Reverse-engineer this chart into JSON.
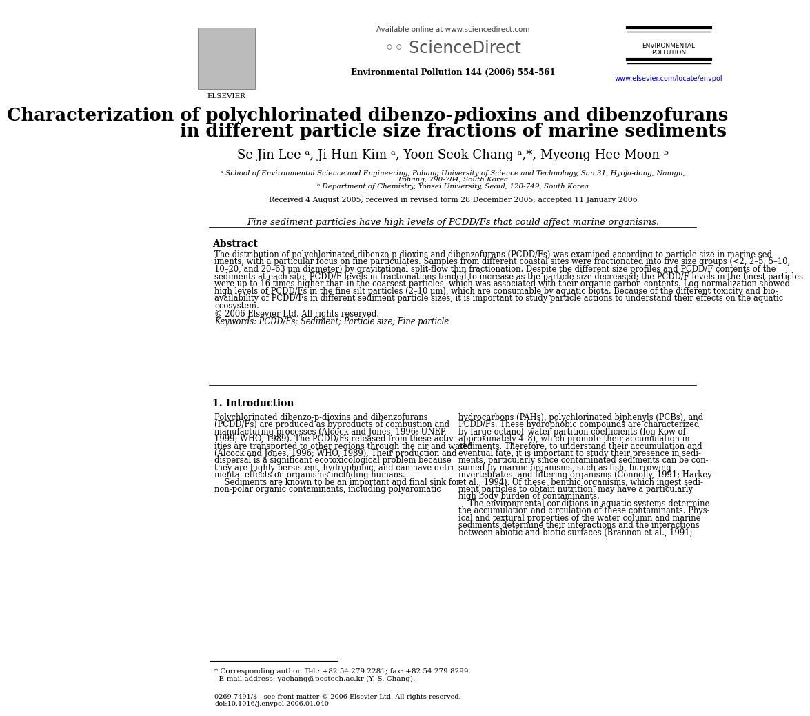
{
  "bg_color": "#ffffff",
  "header_available": "Available online at www.sciencedirect.com",
  "header_journal": "Environmental Pollution 144 (2006) 554–561",
  "header_website": "www.elsevier.com/locate/envpol",
  "header_website_color": "#0000cc",
  "header_env_poll": "ENVIRONMENTAL\nPOLLUTION",
  "title_line1_pre": "Characterization of polychlorinated dibenzo-",
  "title_italic_p": "p",
  "title_line1_post": "-dioxins and dibenzofurans",
  "title_line2": "in different particle size fractions of marine sediments",
  "authors": "Se-Jin Lee ᵃ, Ji-Hun Kim ᵃ, Yoon-Seok Chang ᵃ,*, Myeong Hee Moon ᵇ",
  "affil_a": "ᵃ School of Environmental Science and Engineering, Pohang University of Science and Technology, San 31, Hyoja-dong, Namgu,",
  "affil_a2": "Pohang, 790-784, South Korea",
  "affil_b": "ᵇ Department of Chemistry, Yonsei University, Seoul, 120-749, South Korea",
  "received": "Received 4 August 2005; received in revised form 28 December 2005; accepted 11 January 2006",
  "highlight": "Fine sediment particles have high levels of PCDD/Fs that could affect marine organisms.",
  "abstract_title": "Abstract",
  "abstract_lines": [
    "The distribution of polychlorinated dibenzo-p-dioxins and dibenzofurans (PCDD/Fs) was examined according to particle size in marine sed-",
    "iments, with a particular focus on fine particulates. Samples from different coastal sites were fractionated into five size groups (<2, 2–5, 5–10,",
    "10–20, and 20–63 μm diameter) by gravitational split-flow thin fractionation. Despite the different size profiles and PCDD/F contents of the",
    "sediments at each site, PCDD/F levels in fractionations tended to increase as the particle size decreased; the PCDD/F levels in the finest particles",
    "were up to 16 times higher than in the coarsest particles, which was associated with their organic carbon contents. Log normalization showed",
    "high levels of PCDD/Fs in the fine silt particles (2–10 μm), which are consumable by aquatic biota. Because of the different toxicity and bio-",
    "availability of PCDD/Fs in different sediment particle sizes, it is important to study particle actions to understand their effects on the aquatic",
    "ecosystem."
  ],
  "copyright": "© 2006 Elsevier Ltd. All rights reserved.",
  "keywords": "Keywords: PCDD/Fs; Sediment; Particle size; Fine particle",
  "intro_title": "1. Introduction",
  "intro_col1_lines": [
    "Polychlorinated dibenzo-p-dioxins and dibenzofurans",
    "(PCDD/Fs) are produced as byproducts of combustion and",
    "manufacturing processes (Alcock and Jones, 1996; UNEP,",
    "1999; WHO, 1989). The PCDD/Fs released from these activ-",
    "ities are transported to other regions through the air and water",
    "(Alcock and Jones, 1996; WHO, 1989). Their production and",
    "dispersal is a significant ecotoxicological problem because",
    "they are highly persistent, hydrophobic, and can have detri-",
    "mental effects on organisms including humans.",
    "    Sediments are known to be an important and final sink for",
    "non-polar organic contaminants, including polyaromatic"
  ],
  "intro_col2_lines": [
    "hydrocarbons (PAHs), polychlorinated biphenyls (PCBs), and",
    "PCDD/Fs. These hydrophobic compounds are characterized",
    "by large octanol–water partition coefficients (log Kow of",
    "approximately 4–8), which promote their accumulation in",
    "sediments. Therefore, to understand their accumulation and",
    "eventual fate, it is important to study their presence in sedi-",
    "ments, particularly since contaminated sediments can be con-",
    "sumed by marine organisms, such as fish, burrowing",
    "invertebrates, and filtering organisms (Connolly, 1991; Harkey",
    "et al., 1994). Of these, benthic organisms, which ingest sedi-",
    "ment particles to obtain nutrition, may have a particularly",
    "high body burden of contaminants.",
    "    The environmental conditions in aquatic systems determine",
    "the accumulation and circulation of these contaminants. Phys-",
    "ical and textural properties of the water column and marine",
    "sediments determine their interactions and the interactions",
    "between abiotic and biotic surfaces (Brannon et al., 1991;"
  ],
  "footnote1": "* Corresponding author. Tel.: +82 54 279 2281; fax: +82 54 279 8299.",
  "footnote2": "  E-mail address: yachang@postech.ac.kr (Y.-S. Chang).",
  "footer1": "0269-7491/$ - see front matter © 2006 Elsevier Ltd. All rights reserved.",
  "footer2": "doi:10.1016/j.envpol.2006.01.040"
}
